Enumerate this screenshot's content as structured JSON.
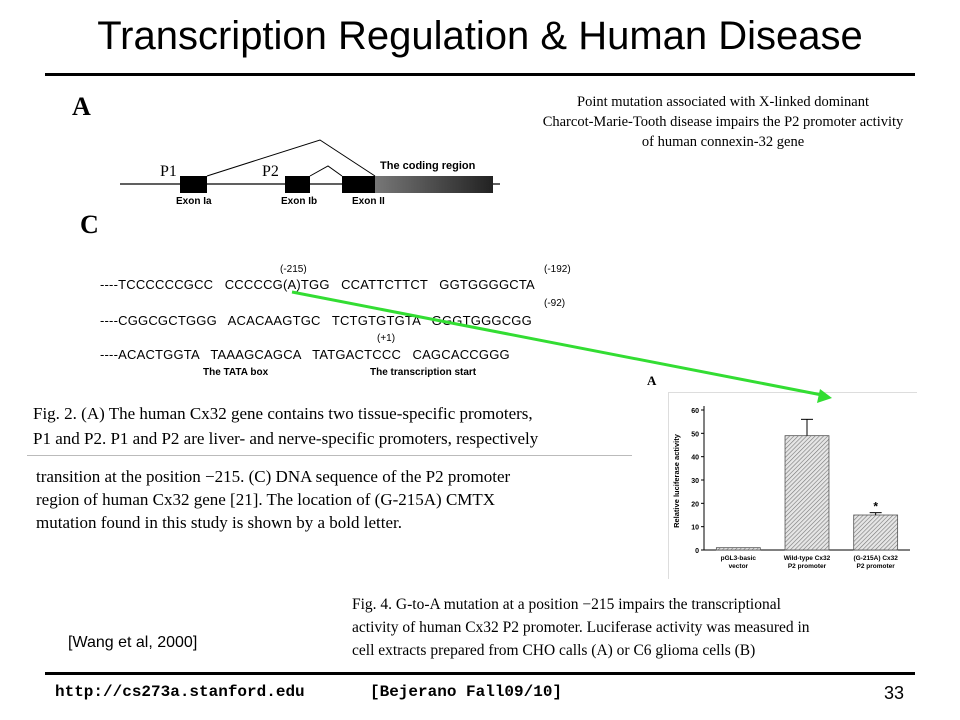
{
  "slide": {
    "title": "Transcription Regulation & Human Disease",
    "citation": "[Wang et al, 2000]",
    "footer_url": "http://cs273a.stanford.edu",
    "footer_course": "[Bejerano Fall09/10]",
    "page_number": "33"
  },
  "figure": {
    "panel_a_label": "A",
    "panel_c_label": "C",
    "paper_title_lines": [
      "Point mutation associated with X-linked dominant",
      "Charcot-Marie-Tooth disease impairs the P2 promoter activity",
      "of human connexin-32 gene"
    ],
    "gene_diagram": {
      "promoter_labels": [
        "P1",
        "P2"
      ],
      "coding_region_label": "The coding region",
      "exon_labels": [
        "Exon Ia",
        "Exon Ib",
        "Exon II"
      ]
    },
    "sequence": {
      "rows": [
        "----TCCCCCCGCC   CCCCCG(A)TGG   CCATTCTTCT   GGTGGGGCTA",
        "----CGGCGCTGGG   ACACAAGTGC   TCTGTGTGTA   GGGTGGGCGG",
        "----ACACTGGTA   TAAAGCAGCA   TATGACTCCC   CAGCACCGGG"
      ],
      "position_labels": [
        "(-215)",
        "(-192)",
        "(-92)",
        "(+1)"
      ],
      "tata_label": "The TATA box",
      "tss_label": "The transcription start"
    },
    "fig2_caption_lines": [
      "Fig. 2.  (A) The human Cx32 gene contains two tissue-specific promoters,",
      "P1 and P2. P1 and P2 are liver- and nerve-specific promoters, respectively",
      "transition at the position −215. (C) DNA sequence of the P2 promoter",
      "region of human Cx32 gene [21]. The location of (G-215A) CMTX",
      "mutation found in this study is shown by a bold letter."
    ],
    "fig4_caption_lines": [
      "Fig. 4.  G-to-A mutation at a position −215 impairs the transcriptional",
      "activity of human Cx32 P2 promoter. Luciferase activity was measured in",
      "cell extracts prepared from CHO calls (A) or C6 glioma cells (B)"
    ],
    "arrow_color": "#33dd33"
  },
  "chart_data": {
    "type": "bar",
    "panel_label": "A",
    "categories": [
      [
        "pGL3-basic",
        "vector"
      ],
      [
        "Wild-type Cx32",
        "P2 promoter"
      ],
      [
        "(G-215A) Cx32",
        "P2 promoter"
      ]
    ],
    "values": [
      1,
      49,
      15
    ],
    "error": [
      0,
      7,
      1
    ],
    "significance": [
      "",
      "",
      "*"
    ],
    "ylabel": "Relative luciferase activity",
    "ylim": [
      0,
      60
    ],
    "yticks": [
      0,
      10,
      20,
      30,
      40,
      50,
      60
    ],
    "bar_fill": "hatched gray"
  }
}
